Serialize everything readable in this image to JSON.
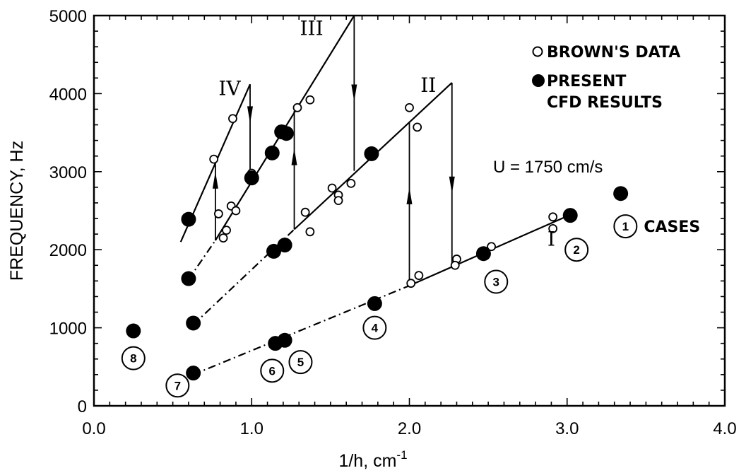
{
  "chart_data": {
    "type": "scatter",
    "xlabel": "1/h, cm",
    "xlabel_exponent": "-1",
    "ylabel": "FREQUENCY, Hz",
    "xlim": [
      0.0,
      4.0
    ],
    "ylim": [
      0,
      5000
    ],
    "x_ticks": [
      "0.0",
      "1.0",
      "2.0",
      "3.0",
      "4.0"
    ],
    "y_ticks": [
      "0",
      "1000",
      "2000",
      "3000",
      "4000",
      "5000"
    ],
    "grid": false,
    "legend_position": "top-right",
    "legend": [
      {
        "marker": "open-circle",
        "label": "BROWN'S DATA"
      },
      {
        "marker": "filled-circle",
        "label": "PRESENT",
        "label2": "CFD RESULTS"
      }
    ],
    "annotation": "U = 1750 cm/s",
    "cases_label": "CASES",
    "stage_labels": [
      {
        "text": "IV",
        "x": 0.86,
        "y": 3980
      },
      {
        "text": "III",
        "x": 1.38,
        "y": 4750
      },
      {
        "text": "II",
        "x": 2.12,
        "y": 4020
      },
      {
        "text": "I",
        "x": 2.9,
        "y": 2050
      }
    ],
    "series": [
      {
        "name": "BROWN'S DATA",
        "marker": "open",
        "points": [
          [
            0.76,
            3160
          ],
          [
            0.88,
            3680
          ],
          [
            1.0,
            2980
          ],
          [
            0.79,
            2460
          ],
          [
            0.82,
            2150
          ],
          [
            0.84,
            2250
          ],
          [
            0.87,
            2560
          ],
          [
            0.9,
            2500
          ],
          [
            1.29,
            3820
          ],
          [
            1.37,
            3920
          ],
          [
            1.34,
            2480
          ],
          [
            1.37,
            2230
          ],
          [
            1.51,
            2790
          ],
          [
            1.55,
            2700
          ],
          [
            1.55,
            2630
          ],
          [
            1.63,
            2850
          ],
          [
            2.0,
            3820
          ],
          [
            2.05,
            3570
          ],
          [
            2.01,
            1570
          ],
          [
            2.06,
            1670
          ],
          [
            2.3,
            1880
          ],
          [
            2.29,
            1800
          ],
          [
            2.52,
            2040
          ],
          [
            2.91,
            2420
          ],
          [
            2.91,
            2270
          ]
        ]
      },
      {
        "name": "PRESENT CFD RESULTS",
        "marker": "filled",
        "points": [
          [
            0.6,
            2390
          ],
          [
            0.6,
            1630
          ],
          [
            0.63,
            1060
          ],
          [
            0.63,
            420
          ],
          [
            0.25,
            960
          ],
          [
            1.0,
            2920
          ],
          [
            1.13,
            3240
          ],
          [
            1.19,
            3510
          ],
          [
            1.22,
            3490
          ],
          [
            1.14,
            1980
          ],
          [
            1.21,
            2060
          ],
          [
            1.76,
            3230
          ],
          [
            1.78,
            1310
          ],
          [
            1.15,
            800
          ],
          [
            1.21,
            840
          ],
          [
            2.47,
            1950
          ],
          [
            3.02,
            2440
          ],
          [
            3.34,
            2720
          ]
        ]
      }
    ],
    "line_segments": [
      {
        "style": "solid",
        "points": [
          [
            0.55,
            2100
          ],
          [
            0.99,
            4120
          ]
        ]
      },
      {
        "style": "solid",
        "points": [
          [
            0.77,
            2120
          ],
          [
            1.65,
            5000
          ]
        ]
      },
      {
        "style": "solid",
        "points": [
          [
            1.27,
            2260
          ],
          [
            2.27,
            4140
          ]
        ]
      },
      {
        "style": "solid",
        "points": [
          [
            2.0,
            1540
          ],
          [
            3.0,
            2430
          ]
        ]
      },
      {
        "style": "dashdot",
        "points": [
          [
            0.6,
            1620
          ],
          [
            0.77,
            2120
          ]
        ]
      },
      {
        "style": "dashdot",
        "points": [
          [
            0.63,
            1040
          ],
          [
            1.27,
            2260
          ]
        ]
      },
      {
        "style": "dashdot",
        "points": [
          [
            0.63,
            400
          ],
          [
            2.0,
            1540
          ]
        ]
      }
    ],
    "vertical_lines": [
      {
        "x": 0.77,
        "y1": 2120,
        "y2": 3100
      },
      {
        "x": 0.99,
        "y1": 2960,
        "y2": 4120
      },
      {
        "x": 1.27,
        "y1": 2260,
        "y2": 3780
      },
      {
        "x": 1.65,
        "y1": 3010,
        "y2": 5000
      },
      {
        "x": 2.0,
        "y1": 1540,
        "y2": 3640
      },
      {
        "x": 2.27,
        "y1": 1800,
        "y2": 4140
      }
    ],
    "arrows": [
      {
        "x": 0.77,
        "y_tip": 3000,
        "direction": "up"
      },
      {
        "x": 0.99,
        "y_tip": 3620,
        "direction": "down"
      },
      {
        "x": 1.27,
        "y_tip": 3300,
        "direction": "up"
      },
      {
        "x": 1.65,
        "y_tip": 3900,
        "direction": "down"
      },
      {
        "x": 2.0,
        "y_tip": 2800,
        "direction": "up"
      },
      {
        "x": 2.27,
        "y_tip": 2720,
        "direction": "down"
      }
    ],
    "cases": [
      {
        "num": "1",
        "x": 3.37,
        "y": 2300
      },
      {
        "num": "2",
        "x": 3.06,
        "y": 2000
      },
      {
        "num": "3",
        "x": 2.55,
        "y": 1590
      },
      {
        "num": "4",
        "x": 1.78,
        "y": 1000
      },
      {
        "num": "5",
        "x": 1.31,
        "y": 560
      },
      {
        "num": "6",
        "x": 1.13,
        "y": 450
      },
      {
        "num": "7",
        "x": 0.53,
        "y": 260
      },
      {
        "num": "8",
        "x": 0.25,
        "y": 610
      }
    ]
  }
}
